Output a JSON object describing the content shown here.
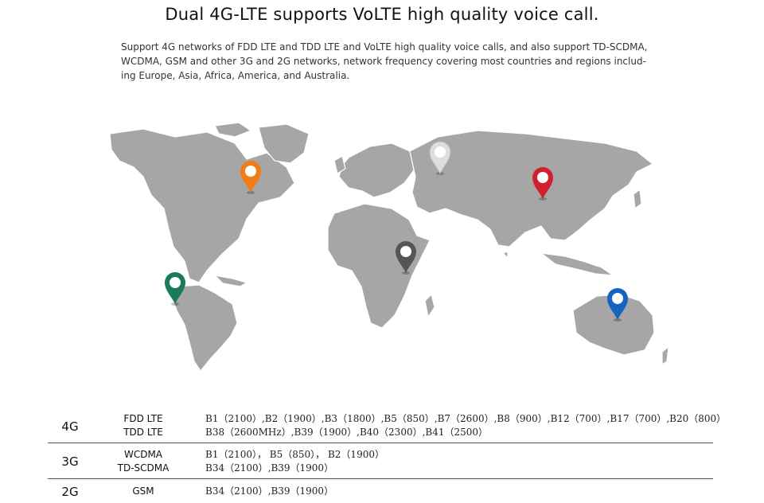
{
  "title": "Dual 4G-LTE supports VoLTE high quality voice call.",
  "description": [
    "Support 4G networks of FDD LTE and TDD LTE and VoLTE high quality voice calls, and also support TD-SCDMA,",
    "WCDMA, GSM and other 3G and 2G networks, network frequency covering most countries and regions includ-",
    "ing Europe, Asia, Africa, America, and Australia."
  ],
  "map": {
    "land_color": "#a6a6a6",
    "pins": [
      {
        "region": "North America",
        "color": "#f07d1a",
        "icon": "map-pin-icon"
      },
      {
        "region": "South America",
        "color": "#1a7a5e",
        "icon": "map-pin-icon"
      },
      {
        "region": "Europe",
        "color": "#dedede",
        "icon": "map-pin-icon"
      },
      {
        "region": "Africa",
        "color": "#555555",
        "icon": "map-pin-icon"
      },
      {
        "region": "Asia",
        "color": "#d11f32",
        "icon": "map-pin-icon"
      },
      {
        "region": "Australia",
        "color": "#1565c0",
        "icon": "map-pin-icon"
      }
    ]
  },
  "networks": [
    {
      "generation": "4G",
      "tech": [
        "FDD LTE",
        "TDD LTE"
      ],
      "bands": [
        "B1（2100）,B2（1900）,B3（1800）,B5（850）,B7（2600）,B8（900）,B12（700）,B17（700）,B20（800）",
        "B38（2600MHz）,B39（1900）,B40（2300）,B41（2500）"
      ]
    },
    {
      "generation": "3G",
      "tech": [
        "WCDMA",
        "TD-SCDMA"
      ],
      "bands": [
        "B1（2100）， B5（850）， B2（1900）",
        "B34（2100）,B39（1900）"
      ]
    },
    {
      "generation": "2G",
      "tech": [
        "GSM"
      ],
      "bands": [
        "B34（2100）,B39（1900）"
      ]
    }
  ]
}
